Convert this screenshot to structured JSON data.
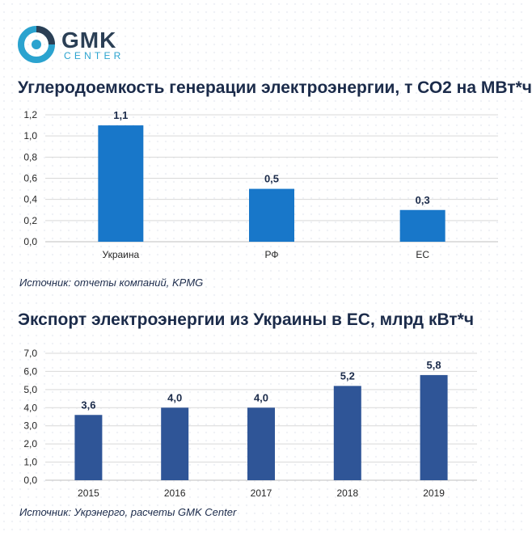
{
  "logo": {
    "name": "GMK",
    "sub": "CENTER"
  },
  "colors": {
    "chart1_bar": "#1877c9",
    "chart2_bar": "#2f5597",
    "text": "#1b2b4a"
  },
  "chart_data": [
    {
      "type": "bar",
      "title": "Углеродоемкость генерации электроэнергии,  т СО2 на МВт*ч",
      "categories": [
        "Украина",
        "РФ",
        "ЕС"
      ],
      "values": [
        1.1,
        0.5,
        0.3
      ],
      "value_labels": [
        "1,1",
        "0,5",
        "0,3"
      ],
      "yticks": [
        "0,0",
        "0,2",
        "0,4",
        "0,6",
        "0,8",
        "1,0",
        "1,2"
      ],
      "ylim": [
        0,
        1.2
      ],
      "grid": true,
      "source": "Источник: отчеты компаний, KPMG"
    },
    {
      "type": "bar",
      "title": "Экспорт электроэнергии из Украины в ЕС, млрд кВт*ч",
      "categories": [
        "2015",
        "2016",
        "2017",
        "2018",
        "2019"
      ],
      "values": [
        3.6,
        4.0,
        4.0,
        5.2,
        5.8
      ],
      "value_labels": [
        "3,6",
        "4,0",
        "4,0",
        "5,2",
        "5,8"
      ],
      "yticks": [
        "0,0",
        "1,0",
        "2,0",
        "3,0",
        "4,0",
        "5,0",
        "6,0",
        "7,0"
      ],
      "ylim": [
        0,
        7.0
      ],
      "grid": true,
      "source": "Источник: Укрэнерго, расчеты GMK Center"
    }
  ]
}
